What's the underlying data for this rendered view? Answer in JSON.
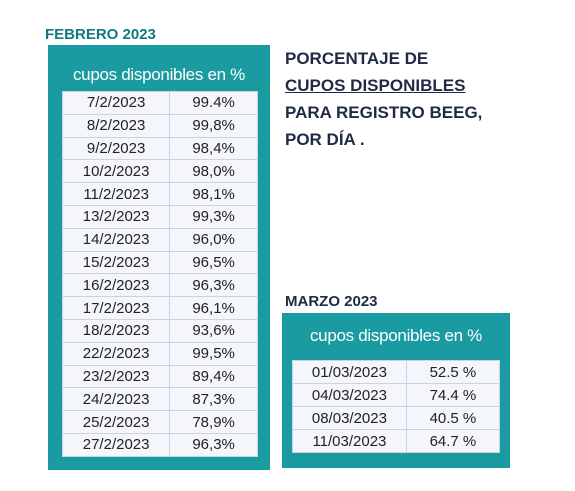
{
  "febrero": {
    "title": "FEBRERO 2023",
    "header": "cupos disponibles en %",
    "rows": [
      [
        "7/2/2023",
        "99.4%"
      ],
      [
        "8/2/2023",
        "99,8%"
      ],
      [
        "9/2/2023",
        "98,4%"
      ],
      [
        "10/2/2023",
        "98,0%"
      ],
      [
        "11/2/2023",
        "98,1%"
      ],
      [
        "13/2/2023",
        "99,3%"
      ],
      [
        "14/2/2023",
        "96,0%"
      ],
      [
        "15/2/2023",
        "96,5%"
      ],
      [
        "16/2/2023",
        "96,3%"
      ],
      [
        "17/2/2023",
        "96,1%"
      ],
      [
        "18/2/2023",
        "93,6%"
      ],
      [
        "22/2/2023",
        "99,5%"
      ],
      [
        "23/2/2023",
        "89,4%"
      ],
      [
        "24/2/2023",
        "87,3%"
      ],
      [
        "25/2/2023",
        "78,9%"
      ],
      [
        "27/2/2023",
        "96,3%"
      ]
    ]
  },
  "heading": {
    "lines": [
      "PORCENTAJE DE",
      "CUPOS DISPONIBLES",
      "PARA REGISTRO BEEG,",
      "POR DÍA ."
    ]
  },
  "marzo": {
    "title": "MARZO 2023",
    "header": "cupos disponibles en %",
    "rows": [
      [
        "01/03/2023",
        "52.5 %"
      ],
      [
        "04/03/2023",
        "74.4 %"
      ],
      [
        "08/03/2023",
        "40.5 %"
      ],
      [
        "11/03/2023",
        "64.7 %"
      ]
    ]
  }
}
